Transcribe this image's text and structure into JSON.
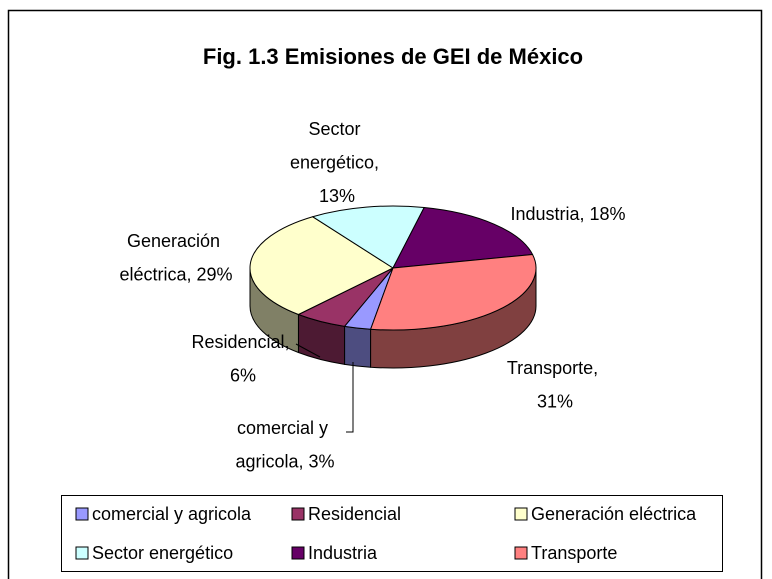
{
  "chart_data": {
    "type": "pie",
    "title": "Fig. 1.3 Emisiones de GEI de México",
    "categories": [
      "comercial y agricola",
      "Residencial",
      "Generación eléctrica",
      "Sector energético",
      "Industria",
      "Transporte"
    ],
    "values": [
      3,
      6,
      29,
      13,
      18,
      31
    ],
    "value_labels": [
      "comercial y agricola, 3%",
      "Residencial, 6%",
      "Generación eléctrica, 29%",
      "Sector energético, 13%",
      "Industria, 18%",
      "Transporte, 31%"
    ],
    "colors": [
      "#9999ff",
      "#993366",
      "#ffffcc",
      "#ccffff",
      "#660066",
      "#ff8080"
    ],
    "legend": "bottom"
  }
}
